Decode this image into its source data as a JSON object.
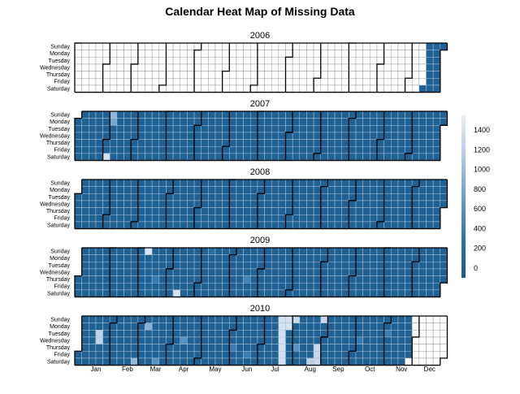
{
  "chart_data": {
    "type": "heatmap",
    "title": "Calendar Heat Map of Missing Data",
    "years": [
      "2006",
      "2007",
      "2008",
      "2009",
      "2010"
    ],
    "weekdays": [
      "Sunday",
      "Monday",
      "Tuesday",
      "Wednesday",
      "Thursday",
      "Friday",
      "Saturday"
    ],
    "months": [
      "Jan",
      "Feb",
      "Mar",
      "Apr",
      "May",
      "Jun",
      "Jul",
      "Aug",
      "Sep",
      "Oct",
      "Nov",
      "Dec"
    ],
    "data_range": {
      "start": "2006-12-16",
      "end": "2010-11-26"
    },
    "baseline_value": 0,
    "colorbar": {
      "ticks": [
        0,
        200,
        400,
        600,
        800,
        1000,
        1200,
        1400
      ],
      "range": [
        -100,
        1550
      ],
      "colors": [
        "#1a5a8c",
        "#2f75aa",
        "#6a9fca",
        "#b3c9e2",
        "#e8eef6"
      ]
    },
    "highlights": [
      {
        "date": "2007-02-04",
        "value": 950
      },
      {
        "date": "2007-02-05",
        "value": 800
      },
      {
        "date": "2007-02-03",
        "value": 1400
      },
      {
        "date": "2009-03-08",
        "value": 1450
      },
      {
        "date": "2009-05-10",
        "value": 200
      },
      {
        "date": "2009-04-11",
        "value": 1400
      },
      {
        "date": "2009-06-18",
        "value": 450
      },
      {
        "date": "2009-03-19",
        "value": 350
      },
      {
        "date": "2010-01-19",
        "value": 1250
      },
      {
        "date": "2010-01-20",
        "value": 1250
      },
      {
        "date": "2010-03-08",
        "value": 900
      },
      {
        "date": "2010-02-27",
        "value": 950
      },
      {
        "date": "2010-03-20",
        "value": 600
      },
      {
        "date": "2010-07-18",
        "value": 1400
      },
      {
        "date": "2010-07-19",
        "value": 1400
      },
      {
        "date": "2010-07-20",
        "value": 1400
      },
      {
        "date": "2010-07-21",
        "value": 1400
      },
      {
        "date": "2010-07-22",
        "value": 1400
      },
      {
        "date": "2010-07-23",
        "value": 1400
      },
      {
        "date": "2010-07-24",
        "value": 1400
      },
      {
        "date": "2010-07-25",
        "value": 1400
      },
      {
        "date": "2010-07-26",
        "value": 1400
      },
      {
        "date": "2010-08-01",
        "value": 1300
      },
      {
        "date": "2010-08-05",
        "value": 600
      },
      {
        "date": "2010-08-26",
        "value": 1300
      },
      {
        "date": "2010-08-27",
        "value": 1300
      },
      {
        "date": "2010-08-28",
        "value": 1300
      },
      {
        "date": "2010-08-29",
        "value": 1300
      },
      {
        "date": "2010-08-21",
        "value": 1200
      },
      {
        "date": "2010-04-14",
        "value": 600
      },
      {
        "date": "2010-06-03",
        "value": 400
      },
      {
        "date": "2010-06-18",
        "value": 400
      },
      {
        "date": "2010-11-02",
        "value": 400
      },
      {
        "date": "2010-10-06",
        "value": 350
      }
    ]
  }
}
